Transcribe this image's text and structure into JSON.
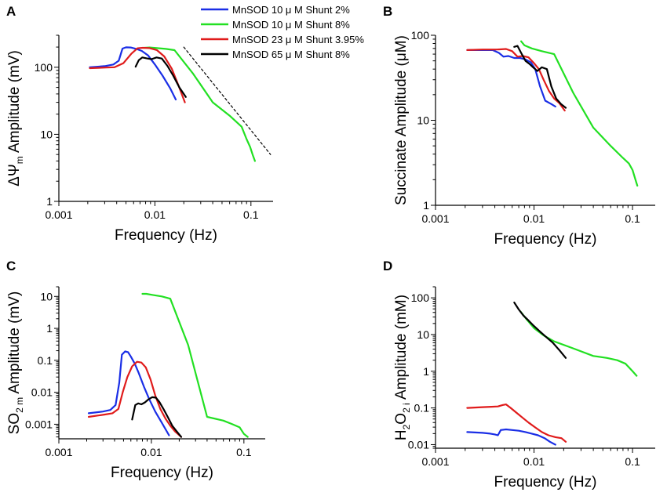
{
  "legend": [
    {
      "label": "MnSOD 10  μ M  Shunt 2%",
      "color": "#1a2ee6"
    },
    {
      "label": "MnSOD 10  μ M  Shunt 8%",
      "color": "#22e022"
    },
    {
      "label": "MnSOD 23  μ M  Shunt 3.95%",
      "color": "#e01b1b"
    },
    {
      "label": "MnSOD 65  μ M  Shunt 8%",
      "color": "#000000"
    }
  ],
  "chart_data": [
    {
      "panel": "A",
      "type": "line",
      "scale": "log-log",
      "xlabel": "Frequency (Hz)",
      "ylabel": {
        "prefix": "ΔΨ",
        "sub": "m",
        "suffix": " Amplitude (mV)"
      },
      "xlim": [
        0.001,
        0.17
      ],
      "ylim": [
        1,
        300
      ],
      "xticks": [
        0.001,
        0.01,
        0.1
      ],
      "xtick_labels": [
        "0.001",
        "0.01",
        "0.1"
      ],
      "yticks": [
        1,
        10,
        100
      ],
      "ytick_labels": [
        "1",
        "10",
        "100"
      ],
      "series": [
        {
          "name": "MnSOD 10 μM Shunt 2%",
          "color": "#1a2ee6",
          "x": [
            0.0021,
            0.003,
            0.0037,
            0.0042,
            0.0046,
            0.005,
            0.0056,
            0.0064,
            0.0073,
            0.0085,
            0.01,
            0.012,
            0.0145,
            0.0165
          ],
          "y": [
            100,
            104,
            110,
            125,
            190,
            198,
            197,
            188,
            175,
            150,
            110,
            75,
            48,
            33
          ]
        },
        {
          "name": "MnSOD 10 μM Shunt 8%",
          "color": "#22e022",
          "x": [
            0.0078,
            0.0088,
            0.0105,
            0.013,
            0.016,
            0.025,
            0.04,
            0.06,
            0.08,
            0.09,
            0.098,
            0.104,
            0.11
          ],
          "y": [
            195,
            197,
            193,
            188,
            180,
            80,
            30,
            19,
            13,
            8.5,
            6.5,
            5,
            4
          ]
        },
        {
          "name": "MnSOD 23 μM Shunt 3.95%",
          "color": "#e01b1b",
          "x": [
            0.0021,
            0.0031,
            0.0038,
            0.0047,
            0.0057,
            0.0066,
            0.0075,
            0.0088,
            0.0105,
            0.0125,
            0.015,
            0.0175,
            0.0205
          ],
          "y": [
            97,
            99,
            100,
            115,
            160,
            192,
            195,
            193,
            180,
            145,
            95,
            55,
            30
          ]
        },
        {
          "name": "MnSOD 65 μM Shunt 8%",
          "color": "#000000",
          "x": [
            0.0063,
            0.0068,
            0.0074,
            0.0082,
            0.0092,
            0.0104,
            0.0118,
            0.0135,
            0.0155,
            0.018,
            0.021
          ],
          "y": [
            102,
            128,
            140,
            136,
            132,
            140,
            135,
            105,
            75,
            50,
            36
          ]
        },
        {
          "name": "slope",
          "color": "#000000",
          "dashed": true,
          "x": [
            0.02,
            0.16
          ],
          "y": [
            200,
            5
          ]
        }
      ]
    },
    {
      "panel": "B",
      "type": "line",
      "scale": "log-log",
      "xlabel": "Frequency (Hz)",
      "ylabel": {
        "prefix": "Succinate Amplitude (μM)",
        "sub": "",
        "suffix": ""
      },
      "xlim": [
        0.001,
        0.17
      ],
      "ylim": [
        1,
        100
      ],
      "xticks": [
        0.001,
        0.01,
        0.1
      ],
      "xtick_labels": [
        "0.001",
        "0.01",
        "0.1"
      ],
      "yticks": [
        1,
        10,
        100
      ],
      "ytick_labels": [
        "1",
        "10",
        "100"
      ],
      "series": [
        {
          "name": "MnSOD 10 μM Shunt 2%",
          "color": "#1a2ee6",
          "x": [
            0.0021,
            0.003,
            0.0038,
            0.0044,
            0.0049,
            0.0055,
            0.0063,
            0.0072,
            0.0082,
            0.0093,
            0.0103,
            0.0115,
            0.013,
            0.015,
            0.0165
          ],
          "y": [
            67,
            67,
            67,
            62,
            56,
            57,
            54,
            54,
            52,
            48,
            40,
            25,
            17,
            15.5,
            14.5
          ]
        },
        {
          "name": "MnSOD 10 μM Shunt 8%",
          "color": "#22e022",
          "x": [
            0.0074,
            0.008,
            0.0095,
            0.012,
            0.016,
            0.025,
            0.04,
            0.06,
            0.08,
            0.092,
            0.1,
            0.107,
            0.112
          ],
          "y": [
            85,
            76,
            70,
            65,
            60,
            21,
            8.2,
            5,
            3.6,
            3.1,
            2.6,
            2.0,
            1.7
          ]
        },
        {
          "name": "MnSOD 23 μM Shunt 3.95%",
          "color": "#e01b1b",
          "x": [
            0.0021,
            0.003,
            0.0042,
            0.0052,
            0.006,
            0.0068,
            0.0077,
            0.0088,
            0.01,
            0.0112,
            0.0125,
            0.0142,
            0.016,
            0.018,
            0.0205
          ],
          "y": [
            67,
            68,
            68,
            69,
            65,
            56,
            57,
            55,
            47,
            40,
            30,
            22,
            18,
            16,
            13
          ]
        },
        {
          "name": "MnSOD 65 μM Shunt 8%",
          "color": "#000000",
          "x": [
            0.0063,
            0.0068,
            0.0074,
            0.0082,
            0.009,
            0.0098,
            0.0108,
            0.012,
            0.0135,
            0.015,
            0.0168,
            0.0188,
            0.021
          ],
          "y": [
            73,
            75,
            62,
            50,
            46,
            42,
            38,
            42,
            40,
            25,
            18,
            15.5,
            14
          ]
        }
      ]
    },
    {
      "panel": "C",
      "type": "line",
      "scale": "log-log",
      "xlabel": "Frequency (Hz)",
      "ylabel": {
        "prefix": "SO",
        "sub": "2 m",
        "suffix": " Amplitude (mV)"
      },
      "xlim": [
        0.001,
        0.17
      ],
      "ylim": [
        0.00035,
        20
      ],
      "xticks": [
        0.001,
        0.01,
        0.1
      ],
      "xtick_labels": [
        "0.001",
        "0.01",
        "0.1"
      ],
      "yticks": [
        0.001,
        0.01,
        0.1,
        1,
        10
      ],
      "ytick_labels": [
        "0.001",
        "0.01",
        "0.1",
        "1",
        "10"
      ],
      "series": [
        {
          "name": "MnSOD 10 μM Shunt 2%",
          "color": "#1a2ee6",
          "x": [
            0.0021,
            0.003,
            0.0036,
            0.0041,
            0.0045,
            0.0048,
            0.0052,
            0.0056,
            0.006,
            0.0066,
            0.0073,
            0.0083,
            0.0095,
            0.011,
            0.013,
            0.0155
          ],
          "y": [
            0.0022,
            0.0025,
            0.0028,
            0.004,
            0.02,
            0.15,
            0.19,
            0.18,
            0.13,
            0.08,
            0.04,
            0.015,
            0.006,
            0.0025,
            0.0011,
            0.00045
          ]
        },
        {
          "name": "MnSOD 10 μM Shunt 8%",
          "color": "#22e022",
          "x": [
            0.008,
            0.0088,
            0.0105,
            0.013,
            0.016,
            0.025,
            0.04,
            0.06,
            0.075,
            0.09,
            0.1,
            0.11
          ],
          "y": [
            12,
            12,
            11,
            10,
            8.5,
            0.3,
            0.0017,
            0.0013,
            0.001,
            0.0008,
            0.0005,
            0.0004
          ]
        },
        {
          "name": "MnSOD 23 μM Shunt 3.95%",
          "color": "#e01b1b",
          "x": [
            0.0021,
            0.0031,
            0.0038,
            0.0044,
            0.0049,
            0.0055,
            0.0062,
            0.007,
            0.0078,
            0.0087,
            0.0098,
            0.011,
            0.0125,
            0.0142,
            0.016,
            0.018,
            0.021
          ],
          "y": [
            0.0017,
            0.002,
            0.0022,
            0.003,
            0.01,
            0.03,
            0.065,
            0.09,
            0.085,
            0.06,
            0.025,
            0.008,
            0.003,
            0.0015,
            0.0009,
            0.0006,
            0.0004
          ]
        },
        {
          "name": "MnSOD 65 μM Shunt 8%",
          "color": "#000000",
          "x": [
            0.0062,
            0.0067,
            0.0072,
            0.0078,
            0.0085,
            0.0093,
            0.0102,
            0.0112,
            0.0122,
            0.0135,
            0.015,
            0.0168,
            0.0188,
            0.021
          ],
          "y": [
            0.0014,
            0.004,
            0.0045,
            0.0042,
            0.0048,
            0.006,
            0.007,
            0.0068,
            0.005,
            0.003,
            0.0017,
            0.0009,
            0.0006,
            0.0004
          ]
        }
      ]
    },
    {
      "panel": "D",
      "type": "line",
      "scale": "log-log",
      "xlabel": "Frequency (Hz)",
      "ylabel": {
        "prefix": "H",
        "sub": "2",
        "mid": "O",
        "sub2": "2 i",
        "suffix": " Amplitude (mM)"
      },
      "xlim": [
        0.001,
        0.17
      ],
      "ylim": [
        0.008,
        200
      ],
      "xticks": [
        0.001,
        0.01,
        0.1
      ],
      "xtick_labels": [
        "0.001",
        "0.01",
        "0.1"
      ],
      "yticks": [
        0.01,
        0.1,
        1,
        10,
        100
      ],
      "ytick_labels": [
        "0.01",
        "0.1",
        "1",
        "10",
        "100"
      ],
      "series": [
        {
          "name": "MnSOD 10 μM Shunt 2%",
          "color": "#1a2ee6",
          "x": [
            0.0021,
            0.003,
            0.0036,
            0.004,
            0.0043,
            0.0046,
            0.0052,
            0.006,
            0.007,
            0.0082,
            0.0095,
            0.011,
            0.0128,
            0.0145,
            0.0165
          ],
          "y": [
            0.022,
            0.021,
            0.02,
            0.019,
            0.018,
            0.025,
            0.026,
            0.025,
            0.024,
            0.022,
            0.02,
            0.018,
            0.015,
            0.012,
            0.01
          ]
        },
        {
          "name": "MnSOD 10 μM Shunt 8%",
          "color": "#22e022",
          "x": [
            0.0073,
            0.0085,
            0.01,
            0.0125,
            0.016,
            0.025,
            0.04,
            0.055,
            0.07,
            0.085,
            0.1,
            0.11
          ],
          "y": [
            42,
            25,
            15,
            9.5,
            6.5,
            4.2,
            2.6,
            2.3,
            2.0,
            1.6,
            1.0,
            0.75
          ]
        },
        {
          "name": "MnSOD 23 μM Shunt 3.95%",
          "color": "#e01b1b",
          "x": [
            0.0021,
            0.003,
            0.0037,
            0.0043,
            0.0048,
            0.0052,
            0.0058,
            0.0066,
            0.0076,
            0.0088,
            0.0102,
            0.012,
            0.014,
            0.0165,
            0.019,
            0.021
          ],
          "y": [
            0.1,
            0.105,
            0.108,
            0.11,
            0.12,
            0.125,
            0.1,
            0.075,
            0.055,
            0.04,
            0.03,
            0.022,
            0.018,
            0.016,
            0.015,
            0.012
          ]
        },
        {
          "name": "MnSOD 65 μM Shunt 8%",
          "color": "#000000",
          "x": [
            0.0063,
            0.007,
            0.0078,
            0.0088,
            0.01,
            0.0115,
            0.0133,
            0.0155,
            0.018,
            0.021
          ],
          "y": [
            75,
            48,
            33,
            24,
            17,
            12,
            8.5,
            6,
            3.8,
            2.3
          ]
        }
      ]
    }
  ]
}
